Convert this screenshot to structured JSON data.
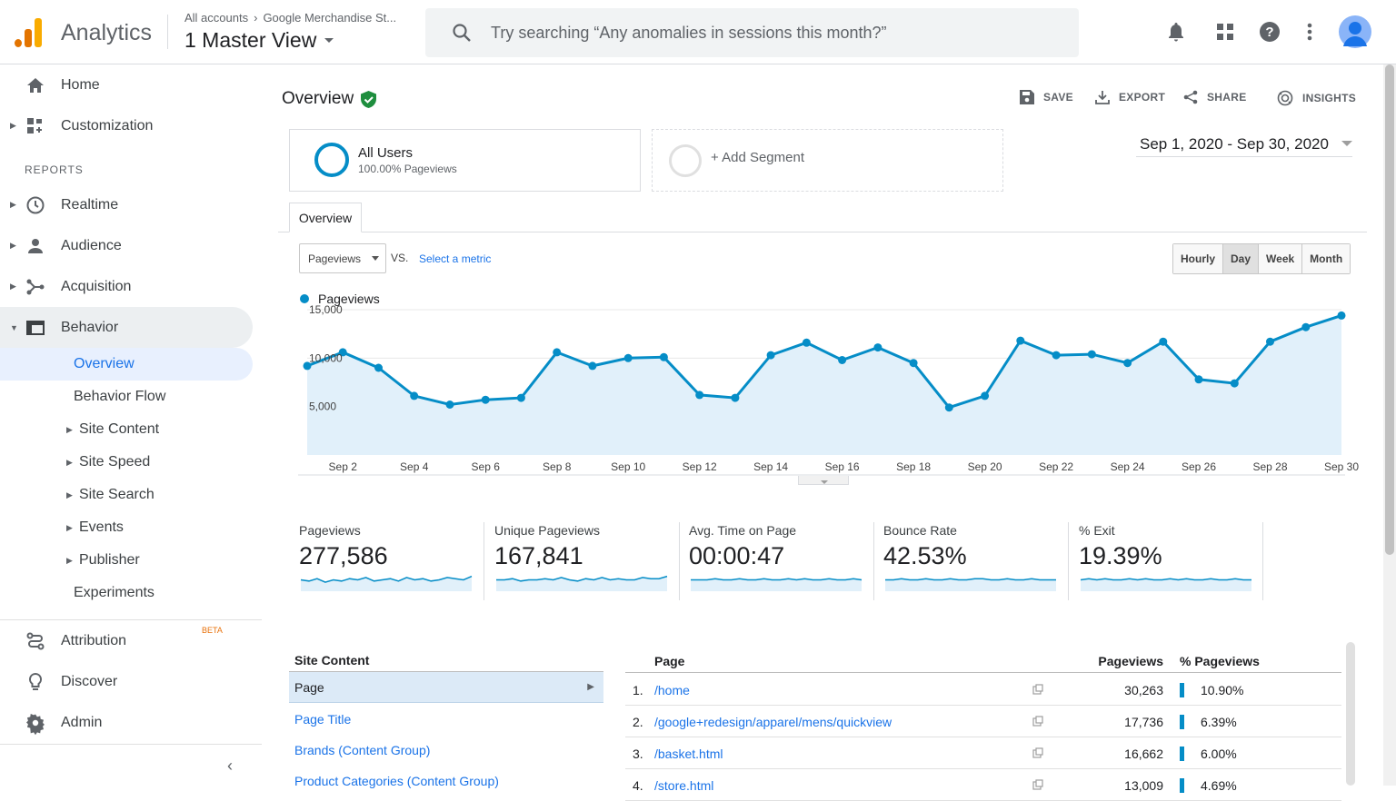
{
  "app": {
    "title": "Analytics"
  },
  "header": {
    "account_crumb": [
      "All accounts",
      "Google Merchandise St..."
    ],
    "view_name": "1 Master View",
    "search_placeholder": "Try searching “Any anomalies in sessions this month?”",
    "icons": [
      "bell-icon",
      "apps-grid-icon",
      "help-icon",
      "more-vert-icon",
      "avatar"
    ]
  },
  "sidebar": {
    "top_items": [
      {
        "label": "Home",
        "icon": "home-icon"
      },
      {
        "label": "Customization",
        "icon": "dashboard-icon"
      }
    ],
    "reports_header": "REPORTS",
    "report_items": [
      {
        "label": "Realtime",
        "icon": "clock-icon"
      },
      {
        "label": "Audience",
        "icon": "person-icon"
      },
      {
        "label": "Acquisition",
        "icon": "acquisition-icon"
      },
      {
        "label": "Behavior",
        "icon": "behavior-icon"
      }
    ],
    "behavior_sub": [
      "Overview",
      "Behavior Flow",
      "Site Content",
      "Site Speed",
      "Site Search",
      "Events",
      "Publisher",
      "Experiments"
    ],
    "bottom_items": [
      {
        "label": "Attribution",
        "badge": "BETA",
        "icon": "attribution-icon"
      },
      {
        "label": "Discover",
        "icon": "lightbulb-icon"
      },
      {
        "label": "Admin",
        "icon": "gear-icon"
      }
    ]
  },
  "main": {
    "title": "Overview",
    "actions": [
      "SAVE",
      "EXPORT",
      "SHARE",
      "INSIGHTS"
    ],
    "segments": {
      "all_name": "All Users",
      "all_sub": "100.00% Pageviews",
      "add": "+ Add Segment"
    },
    "date_range": "Sep 1, 2020 - Sep 30, 2020",
    "tab": "Overview",
    "metric_select": "Pageviews",
    "vs": "VS.",
    "select_metric": "Select a metric",
    "granularity": [
      "Hourly",
      "Day",
      "Week",
      "Month"
    ],
    "granularity_active": "Day",
    "legend": "Pageviews"
  },
  "chart_data": {
    "type": "area",
    "title": "",
    "series": [
      {
        "name": "Pageviews",
        "color": "#058dc7",
        "values": [
          9200,
          10600,
          9000,
          6100,
          5200,
          5700,
          5900,
          10600,
          9200,
          10000,
          10100,
          6200,
          5900,
          10300,
          11600,
          9800,
          11100,
          9500,
          4900,
          6100,
          11800,
          10300,
          10400,
          9500,
          11700,
          7800,
          7400,
          11700,
          13200,
          14400
        ]
      }
    ],
    "x": [
      "Sep 1",
      "Sep 2",
      "Sep 3",
      "Sep 4",
      "Sep 5",
      "Sep 6",
      "Sep 7",
      "Sep 8",
      "Sep 9",
      "Sep 10",
      "Sep 11",
      "Sep 12",
      "Sep 13",
      "Sep 14",
      "Sep 15",
      "Sep 16",
      "Sep 17",
      "Sep 18",
      "Sep 19",
      "Sep 20",
      "Sep 21",
      "Sep 22",
      "Sep 23",
      "Sep 24",
      "Sep 25",
      "Sep 26",
      "Sep 27",
      "Sep 28",
      "Sep 29",
      "Sep 30"
    ],
    "x_tick_labels": [
      "Sep 2",
      "Sep 4",
      "Sep 6",
      "Sep 8",
      "Sep 10",
      "Sep 12",
      "Sep 14",
      "Sep 16",
      "Sep 18",
      "Sep 20",
      "Sep 22",
      "Sep 24",
      "Sep 26",
      "Sep 28",
      "Sep 30"
    ],
    "y_tick_labels": [
      "5,000",
      "10,000",
      "15,000"
    ],
    "ylim": [
      0,
      15000
    ],
    "grid": true
  },
  "metrics": [
    {
      "label": "Pageviews",
      "value": "277,586"
    },
    {
      "label": "Unique Pageviews",
      "value": "167,841"
    },
    {
      "label": "Avg. Time on Page",
      "value": "00:00:47"
    },
    {
      "label": "Bounce Rate",
      "value": "42.53%"
    },
    {
      "label": "% Exit",
      "value": "19.39%"
    }
  ],
  "site_content": {
    "header": "Site Content",
    "items": [
      "Page",
      "Page Title",
      "Brands (Content Group)",
      "Product Categories (Content Group)"
    ]
  },
  "table": {
    "headers": [
      "Page",
      "Pageviews",
      "% Pageviews"
    ],
    "rows": [
      {
        "n": "1.",
        "page": "/home",
        "pageviews": "30,263",
        "pct": "10.90%",
        "frac": 0.109
      },
      {
        "n": "2.",
        "page": "/google+redesign/apparel/mens/quickview",
        "pageviews": "17,736",
        "pct": "6.39%",
        "frac": 0.0639
      },
      {
        "n": "3.",
        "page": "/basket.html",
        "pageviews": "16,662",
        "pct": "6.00%",
        "frac": 0.06
      },
      {
        "n": "4.",
        "page": "/store.html",
        "pageviews": "13,009",
        "pct": "4.69%",
        "frac": 0.0469
      }
    ]
  }
}
